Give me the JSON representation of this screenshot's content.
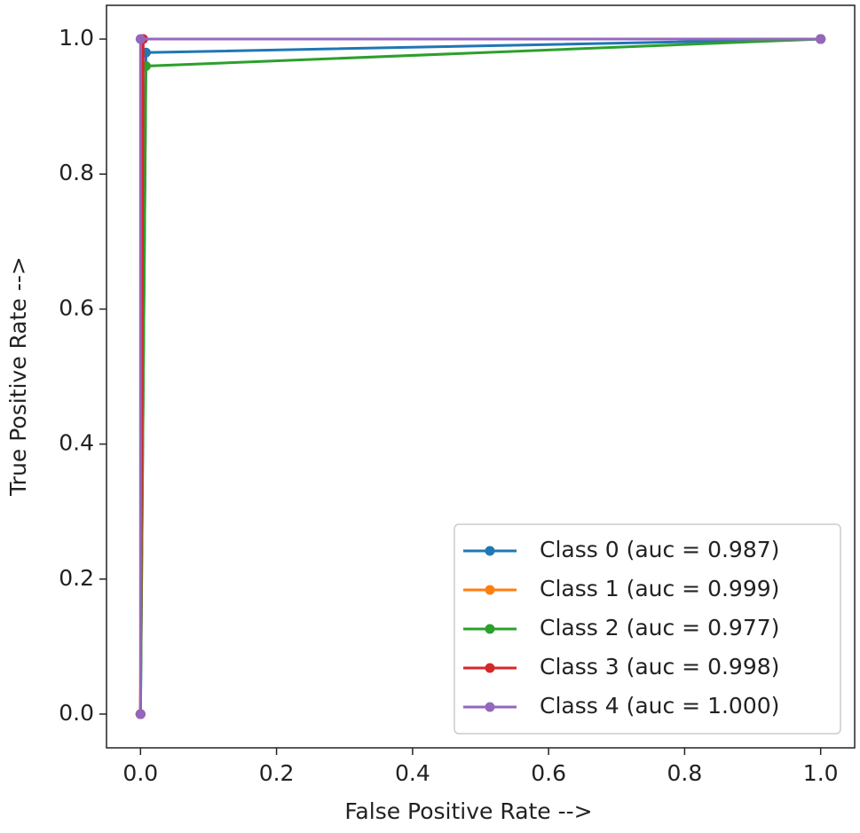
{
  "chart_data": {
    "type": "line",
    "xlabel": "False Positive Rate -->",
    "ylabel": "True Positive Rate -->",
    "xlim": [
      -0.05,
      1.05
    ],
    "ylim": [
      -0.05,
      1.05
    ],
    "xticks": [
      {
        "value": 0,
        "label": "0.0"
      },
      0.2,
      0.4,
      0.6,
      0.8,
      {
        "value": 1,
        "label": "1.0"
      }
    ],
    "yticks": [
      {
        "value": 0,
        "label": "0.0"
      },
      0.2,
      0.4,
      0.6,
      0.8,
      {
        "value": 1,
        "label": "1.0"
      }
    ],
    "legend": "lower right",
    "marker": "circle",
    "series": [
      {
        "name": "Class 0 (auc = 0.987)",
        "color": "#1f77b4",
        "x": [
          0,
          0.008,
          1
        ],
        "y": [
          0,
          0.98,
          1
        ]
      },
      {
        "name": "Class 1 (auc = 0.999)",
        "color": "#ff7f0e",
        "x": [
          0,
          0.002,
          1
        ],
        "y": [
          0,
          1,
          1
        ]
      },
      {
        "name": "Class 2 (auc = 0.977)",
        "color": "#2ca02c",
        "x": [
          0,
          0.008,
          1
        ],
        "y": [
          0,
          0.96,
          1
        ]
      },
      {
        "name": "Class 3 (auc = 0.998)",
        "color": "#d62728",
        "x": [
          0,
          0.004,
          1
        ],
        "y": [
          0,
          1,
          1
        ]
      },
      {
        "name": "Class 4 (auc = 1.000)",
        "color": "#9467bd",
        "x": [
          0,
          0,
          1
        ],
        "y": [
          0,
          1,
          1
        ]
      }
    ]
  }
}
